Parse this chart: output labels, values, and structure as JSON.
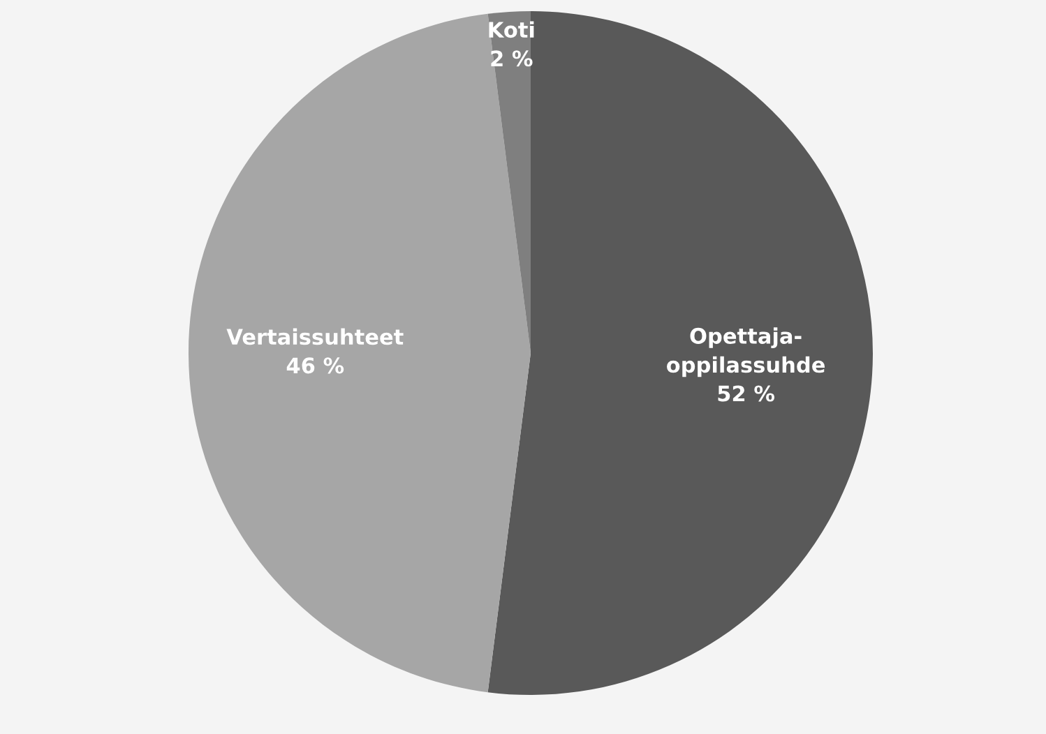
{
  "chart_data": {
    "type": "pie",
    "categories": [
      "Opettaja-\noppilassuhde",
      "Vertaissuhteet",
      "Koti"
    ],
    "values": [
      52,
      46,
      2
    ],
    "colors": [
      "#595959",
      "#a6a6a6",
      "#7f7f7f"
    ],
    "value_labels": [
      "52 %",
      "46 %",
      "2 %"
    ],
    "legend": false
  }
}
